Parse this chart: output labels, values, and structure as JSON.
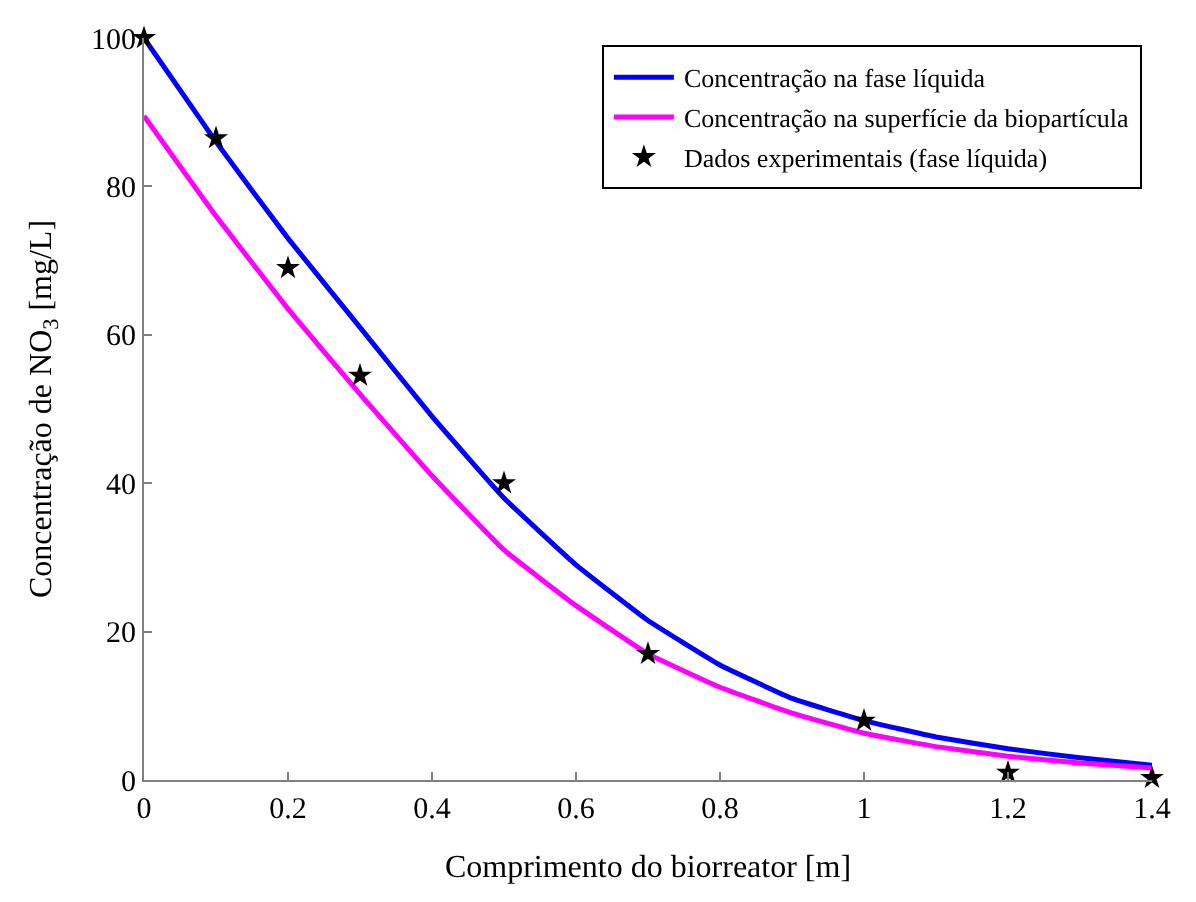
{
  "chart_data": {
    "type": "line",
    "xlabel": "Comprimento do biorreator [m]",
    "ylabel": "Concentração de NO$_{3}$ [mg/L]",
    "xlim": [
      0,
      1.4
    ],
    "xticks": [
      0,
      0.2,
      0.4,
      0.6,
      0.8,
      1,
      1.2,
      1.4
    ],
    "ylim": [
      0,
      100
    ],
    "yticks": [
      0,
      20,
      40,
      60,
      80,
      100
    ],
    "legend": "top right",
    "grid": false,
    "series": [
      {
        "name": "Concentração na fase líquida",
        "color": "#0000ff",
        "x": [
          0,
          0.1,
          0.2,
          0.3,
          0.4,
          0.5,
          0.6,
          0.7,
          0.8,
          0.9,
          1.0,
          1.1,
          1.2,
          1.3,
          1.4
        ],
        "values": [
          100,
          86,
          73,
          61,
          49,
          38,
          29,
          21.5,
          15.5,
          11,
          8,
          5.8,
          4.2,
          3,
          2
        ]
      },
      {
        "name": "Concentração na superfície da biopartícula",
        "color": "#ff00ff",
        "x": [
          0,
          0.1,
          0.2,
          0.3,
          0.4,
          0.5,
          0.6,
          0.7,
          0.8,
          0.9,
          1.0,
          1.1,
          1.2,
          1.3,
          1.4
        ],
        "values": [
          89.5,
          76,
          63.5,
          52,
          41,
          31,
          23.5,
          17,
          12.5,
          9,
          6.3,
          4.5,
          3.2,
          2.3,
          1.6
        ]
      },
      {
        "name": "Dados experimentais (fase líquida)",
        "color": "#000000",
        "type": "scatter",
        "marker": "star",
        "x": [
          0,
          0.1,
          0.2,
          0.3,
          0.5,
          0.7,
          1.0,
          1.2,
          1.4
        ],
        "values": [
          100,
          86.5,
          69,
          54.5,
          40,
          17,
          8,
          1,
          0.3
        ]
      }
    ]
  }
}
